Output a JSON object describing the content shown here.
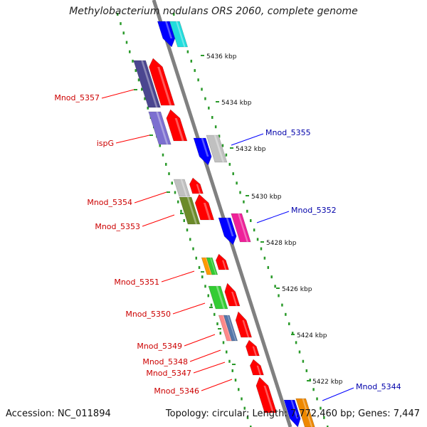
{
  "title": "Methylobacterium nodulans ORS 2060, complete genome",
  "accession_text": "Accession: NC_011894",
  "topology_text": "Topology: circular; Length: 7,772,460 bp; Genes: 7,447",
  "colors": {
    "forward_red": "#ff0000",
    "reverse_blue": "#0000ff",
    "gray_gene": "#c0c0c0",
    "backbone": "#808080",
    "scale_dots": "#2a9a2a",
    "label_red": "#cc0000",
    "label_blue": "#0000aa"
  },
  "scale_ticks": [
    {
      "label": "5436 kbp"
    },
    {
      "label": "5434 kbp"
    },
    {
      "label": "5432 kbp"
    },
    {
      "label": "5430 kbp"
    },
    {
      "label": "5428 kbp"
    },
    {
      "label": "5426 kbp"
    },
    {
      "label": "5424 kbp"
    },
    {
      "label": "5422 kbp"
    }
  ],
  "gene_labels": [
    {
      "text": "Mnod_5357",
      "strand": "forward"
    },
    {
      "text": "ispG",
      "strand": "forward"
    },
    {
      "text": "Mnod_5355",
      "strand": "reverse"
    },
    {
      "text": "Mnod_5354",
      "strand": "forward"
    },
    {
      "text": "Mnod_5353",
      "strand": "forward"
    },
    {
      "text": "Mnod_5352",
      "strand": "reverse"
    },
    {
      "text": "Mnod_5351",
      "strand": "forward"
    },
    {
      "text": "Mnod_5350",
      "strand": "forward"
    },
    {
      "text": "Mnod_5349",
      "strand": "forward"
    },
    {
      "text": "Mnod_5348",
      "strand": "forward"
    },
    {
      "text": "Mnod_5347",
      "strand": "forward"
    },
    {
      "text": "Mnod_5346",
      "strand": "forward"
    },
    {
      "text": "Mnod_5344",
      "strand": "reverse"
    }
  ]
}
